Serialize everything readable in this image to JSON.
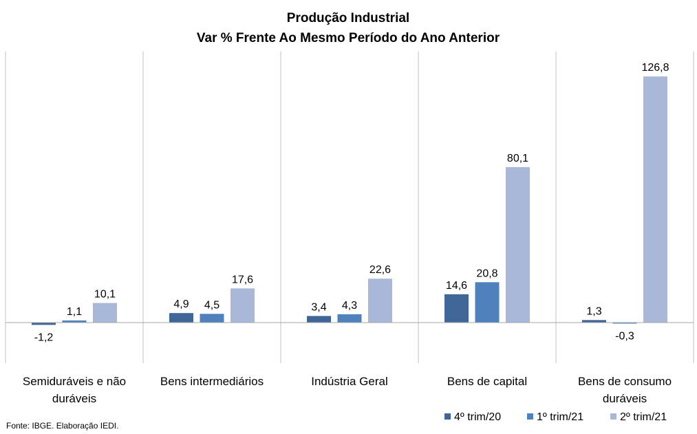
{
  "chart_data": {
    "type": "bar",
    "title": "Produção Industrial",
    "subtitle": "Var % Frente Ao Mesmo Período do Ano Anterior",
    "categories": [
      [
        "Semiduráveis e não",
        "duráveis"
      ],
      [
        "Bens intermediários"
      ],
      [
        "Indústria Geral"
      ],
      [
        "Bens de capital"
      ],
      [
        "Bens de consumo",
        "duráveis"
      ]
    ],
    "series": [
      {
        "name": "4º trim/20",
        "color": "#3f6696",
        "values": [
          -1.2,
          4.9,
          3.4,
          14.6,
          1.3
        ],
        "labels": [
          "-1,2",
          "4,9",
          "3,4",
          "14,6",
          "1,3"
        ]
      },
      {
        "name": "1º trim/21",
        "color": "#4f81bd",
        "values": [
          1.1,
          4.5,
          4.3,
          20.8,
          -0.3
        ],
        "labels": [
          "1,1",
          "4,5",
          "4,3",
          "20,8",
          "-0,3"
        ]
      },
      {
        "name": "2º trim/21",
        "color": "#a9b8d8",
        "values": [
          10.1,
          17.6,
          22.6,
          80.1,
          126.8
        ],
        "labels": [
          "10,1",
          "17,6",
          "22,6",
          "80,1",
          "126,8"
        ]
      }
    ],
    "ylim": [
      -20,
      140
    ],
    "grid": false,
    "legend_position": "bottom-right",
    "source": "Fonte: IBGE. Elaboração IEDI."
  }
}
